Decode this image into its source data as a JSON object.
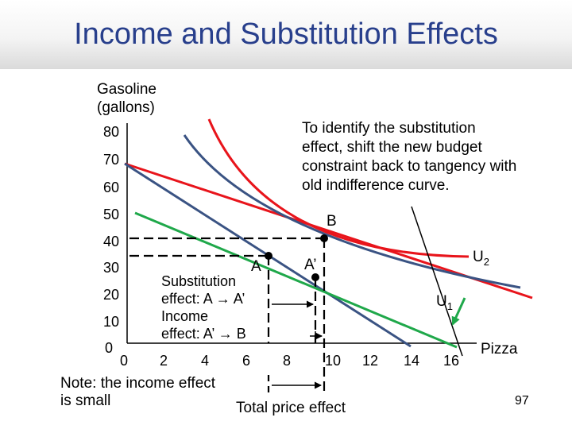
{
  "slide": {
    "title": "Income and Substitution Effects",
    "page_number": "97"
  },
  "diagram": {
    "y_axis_label_line1": "Gasoline",
    "y_axis_label_line2": "(gallons)",
    "x_axis_label": "Pizza",
    "y_ticks": [
      "80",
      "70",
      "60",
      "50",
      "40",
      "30",
      "20",
      "10",
      "0"
    ],
    "x_ticks": [
      "0",
      "2",
      "4",
      "6",
      "8",
      "10",
      "12",
      "14",
      "16"
    ],
    "points": {
      "a": "A",
      "a_prime": "A’",
      "b": "B"
    },
    "curves": {
      "u2_base": "U",
      "u2_sub": "2",
      "u1_base": "U",
      "u1_sub": "1"
    },
    "callout_line1": "To identify the substitution",
    "callout_line2": "effect, shift the new budget",
    "callout_line3": "constraint back to tangency with",
    "callout_line4": "old indifference curve.",
    "substitution_line1": "Substitution",
    "substitution_line2": "effect: A → A’",
    "income_line1": "Income",
    "income_line2": "effect: A’ → B",
    "note_line1": "Note: the income effect",
    "note_line2": "is small",
    "total_label": "Total price effect",
    "colors": {
      "indifference_u2": "#e8141b",
      "budget_old": "#e8141b",
      "indifference_u1": "#3a5383",
      "budget_new": "#3a5383",
      "budget_shifted": "#1fa84a",
      "title": "#283f8c"
    }
  }
}
